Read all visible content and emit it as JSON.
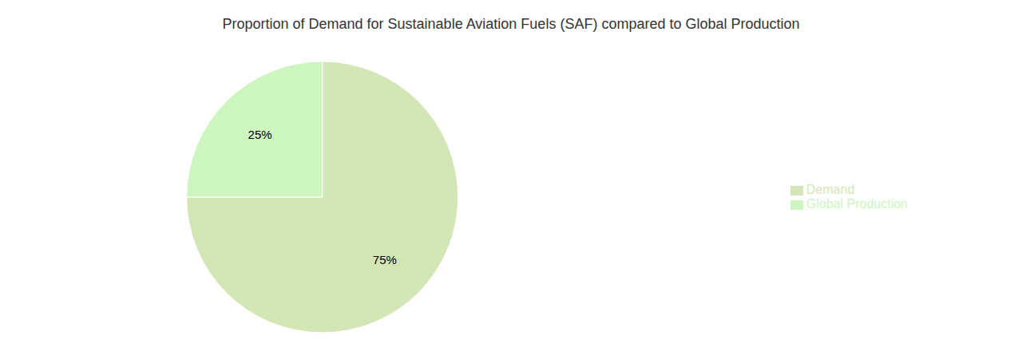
{
  "chart_data": {
    "type": "pie",
    "title": "Proportion of Demand for Sustainable Aviation Fuels (SAF) compared to Global Production",
    "categories": [
      "Demand",
      "Global Production"
    ],
    "values": [
      75,
      25
    ],
    "value_labels": [
      "75%",
      "25%"
    ],
    "colors": [
      "#d4e6b5",
      "#ccf5c0"
    ],
    "data_labels": true,
    "legend": "right"
  }
}
